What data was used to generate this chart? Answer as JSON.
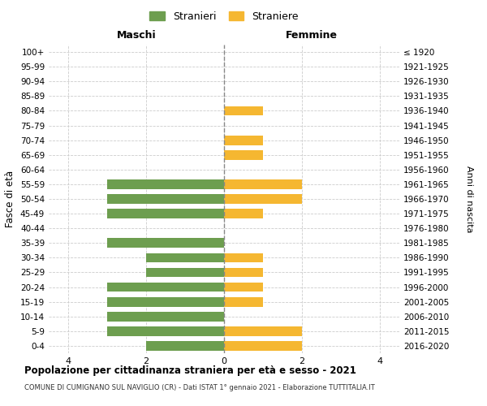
{
  "age_groups": [
    "0-4",
    "5-9",
    "10-14",
    "15-19",
    "20-24",
    "25-29",
    "30-34",
    "35-39",
    "40-44",
    "45-49",
    "50-54",
    "55-59",
    "60-64",
    "65-69",
    "70-74",
    "75-79",
    "80-84",
    "85-89",
    "90-94",
    "95-99",
    "100+"
  ],
  "birth_years": [
    "2016-2020",
    "2011-2015",
    "2006-2010",
    "2001-2005",
    "1996-2000",
    "1991-1995",
    "1986-1990",
    "1981-1985",
    "1976-1980",
    "1971-1975",
    "1966-1970",
    "1961-1965",
    "1956-1960",
    "1951-1955",
    "1946-1950",
    "1941-1945",
    "1936-1940",
    "1931-1935",
    "1926-1930",
    "1921-1925",
    "≤ 1920"
  ],
  "maschi_stranieri": [
    2,
    3,
    3,
    3,
    3,
    2,
    2,
    3,
    0,
    3,
    3,
    3,
    0,
    0,
    0,
    0,
    0,
    0,
    0,
    0,
    0
  ],
  "femmine_straniere": [
    2,
    2,
    0,
    1,
    1,
    1,
    1,
    0,
    0,
    1,
    2,
    2,
    0,
    1,
    1,
    0,
    1,
    0,
    0,
    0,
    0
  ],
  "color_maschi": "#6d9e4f",
  "color_femmine": "#f5b731",
  "title": "Popolazione per cittadinanza straniera per età e sesso - 2021",
  "subtitle": "COMUNE DI CUMIGNANO SUL NAVIGLIO (CR) - Dati ISTAT 1° gennaio 2021 - Elaborazione TUTTITALIA.IT",
  "xlabel_maschi": "Maschi",
  "xlabel_femmine": "Femmine",
  "ylabel": "Fasce di età",
  "ylabel_right": "Anni di nascita",
  "legend_maschi": "Stranieri",
  "legend_femmine": "Straniere",
  "xlim": 4.5,
  "background_color": "#ffffff",
  "grid_color": "#cccccc"
}
